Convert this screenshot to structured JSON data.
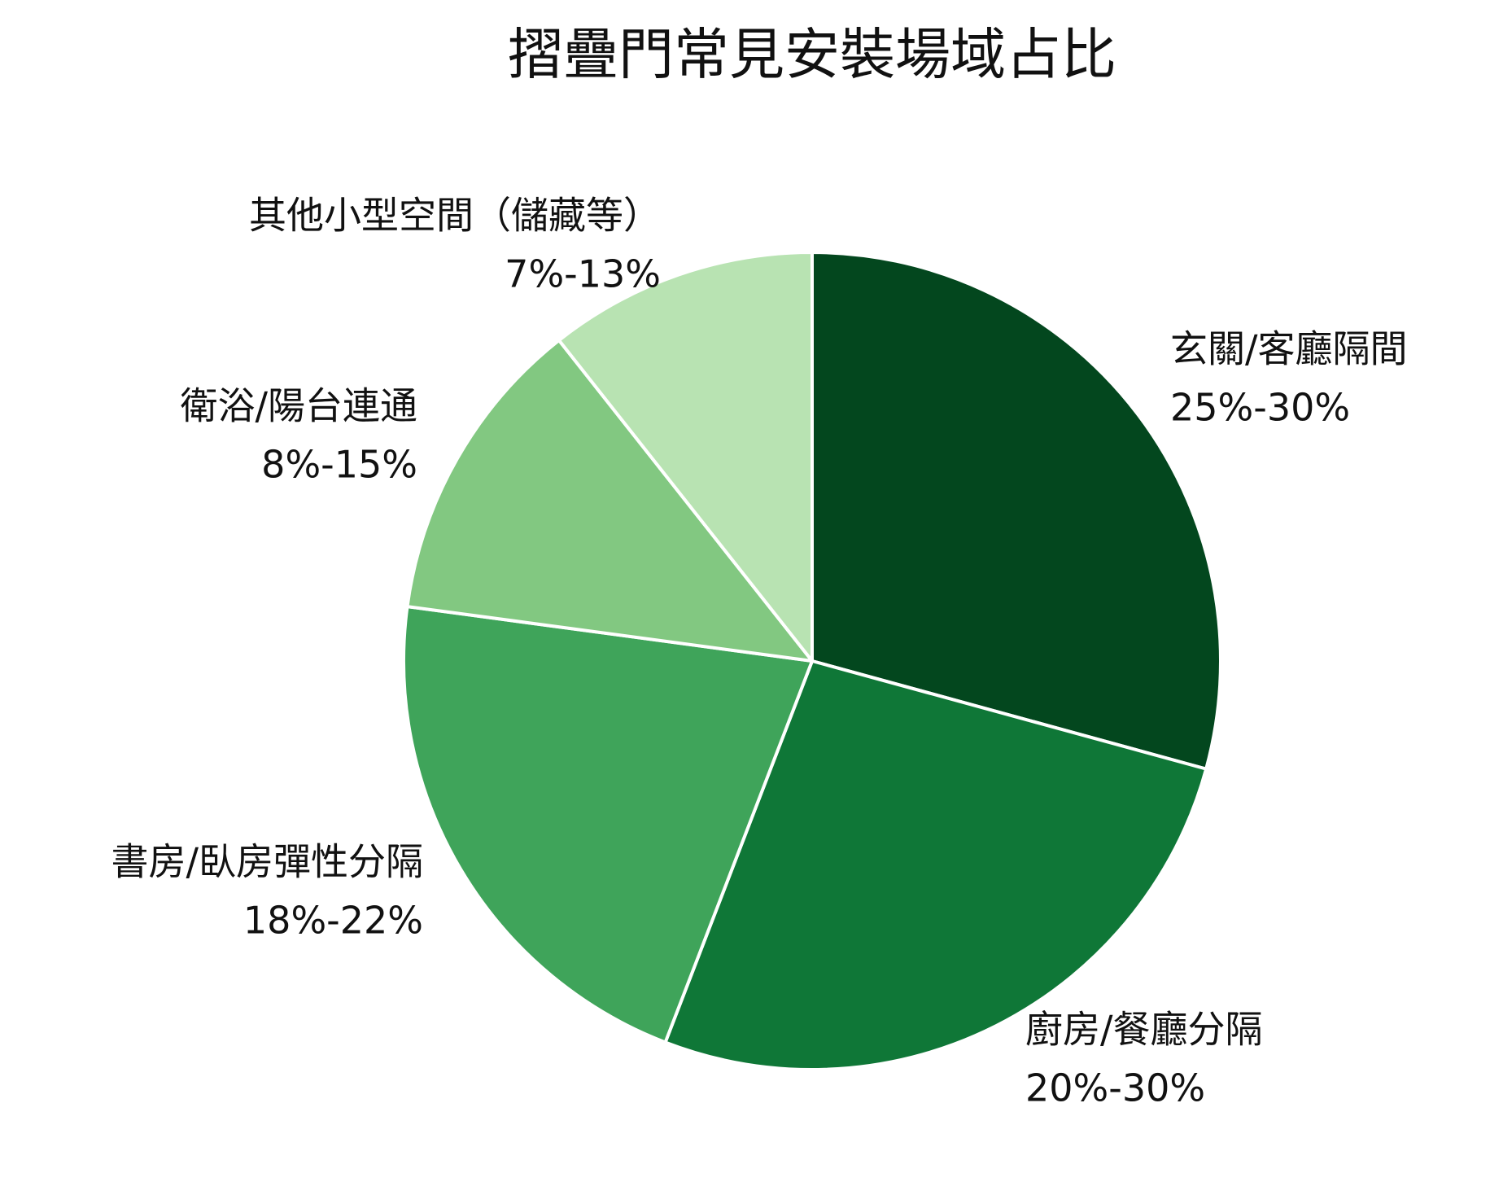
{
  "chart_data": {
    "type": "pie",
    "title": "摺疊門常見安裝場域占比",
    "categories": [
      "玄關/客廳隔間",
      "廚房/餐廳分隔",
      "書房/臥房彈性分隔",
      "衛浴/陽台連通",
      "其他小型空間（儲藏等）"
    ],
    "values": [
      27.5,
      25,
      20,
      11.5,
      10
    ],
    "value_labels": [
      "25%-30%",
      "20%-30%",
      "18%-22%",
      "8%-15%",
      "7%-13%"
    ],
    "colors": [
      "#03471e",
      "#0f7737",
      "#3fa45a",
      "#82c881",
      "#b8e3b2"
    ]
  }
}
